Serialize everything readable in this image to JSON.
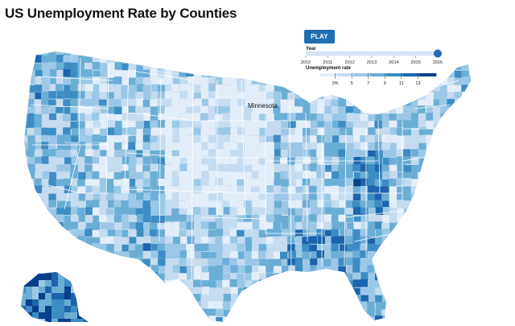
{
  "title": "US Unemployment Rate by Counties",
  "controls": {
    "play_label": "PLAY",
    "year_label": "Year",
    "year_ticks": [
      "2010",
      "2011",
      "2012",
      "2013",
      "2014",
      "2015",
      "2016"
    ],
    "year_range": [
      2010,
      2016
    ],
    "selected_year": 2016,
    "rate_label": "Unemployment rate",
    "rate_ticks": [
      "3%",
      "5",
      "7",
      "9",
      "11",
      "13"
    ]
  },
  "map": {
    "highlighted_state": "Minnesota",
    "color_scale": [
      "#e3eef9",
      "#c4dbf0",
      "#9ac8e6",
      "#6aaed6",
      "#3d8dc4",
      "#1c64ad",
      "#083f8a"
    ],
    "accent": "#1f6fb3"
  }
}
